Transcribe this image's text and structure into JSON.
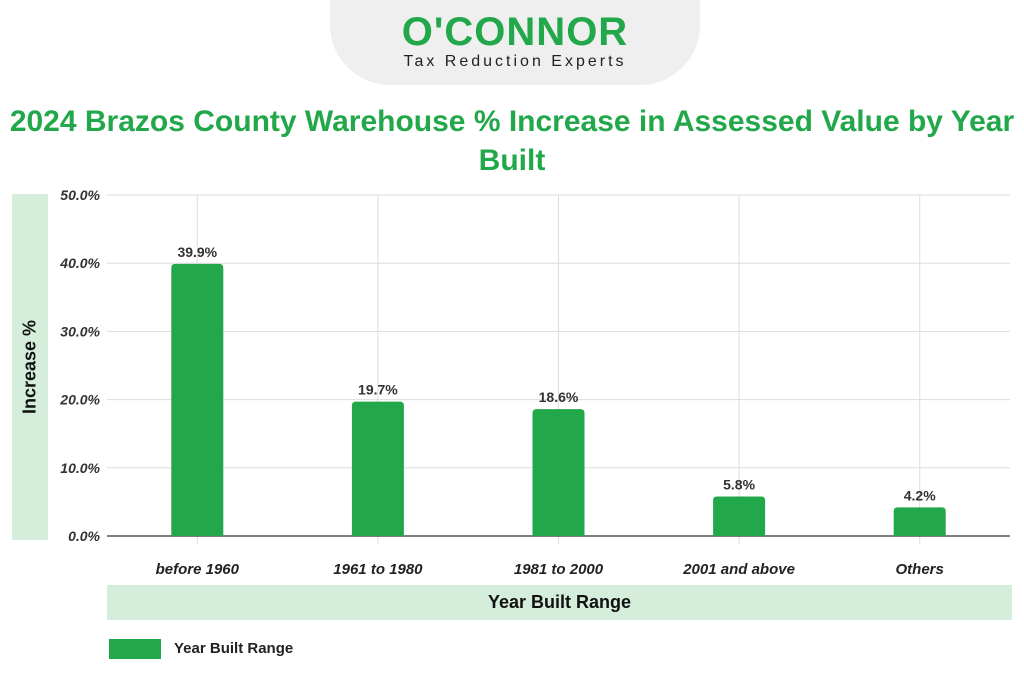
{
  "logo": {
    "name": "O'CONNOR",
    "tagline": "Tax Reduction Experts"
  },
  "chart_data": {
    "type": "bar",
    "title": "2024 Brazos County Warehouse % Increase in Assessed Value by Year Built",
    "xlabel": "Year Built Range",
    "ylabel": "Increase %",
    "categories": [
      "before 1960",
      "1961 to 1980",
      "1981 to 2000",
      "2001 and above",
      "Others"
    ],
    "series": [
      {
        "name": "Year Built Range",
        "values": [
          39.9,
          19.7,
          18.6,
          5.8,
          4.2
        ],
        "color": "#22a84a"
      }
    ],
    "data_labels": [
      "39.9%",
      "19.7%",
      "18.6%",
      "5.8%",
      "4.2%"
    ],
    "ylim": [
      0,
      50
    ],
    "yticks": [
      "0.0%",
      "10.0%",
      "20.0%",
      "30.0%",
      "40.0%",
      "50.0%"
    ],
    "grid": true,
    "legend": "bottom-left"
  }
}
